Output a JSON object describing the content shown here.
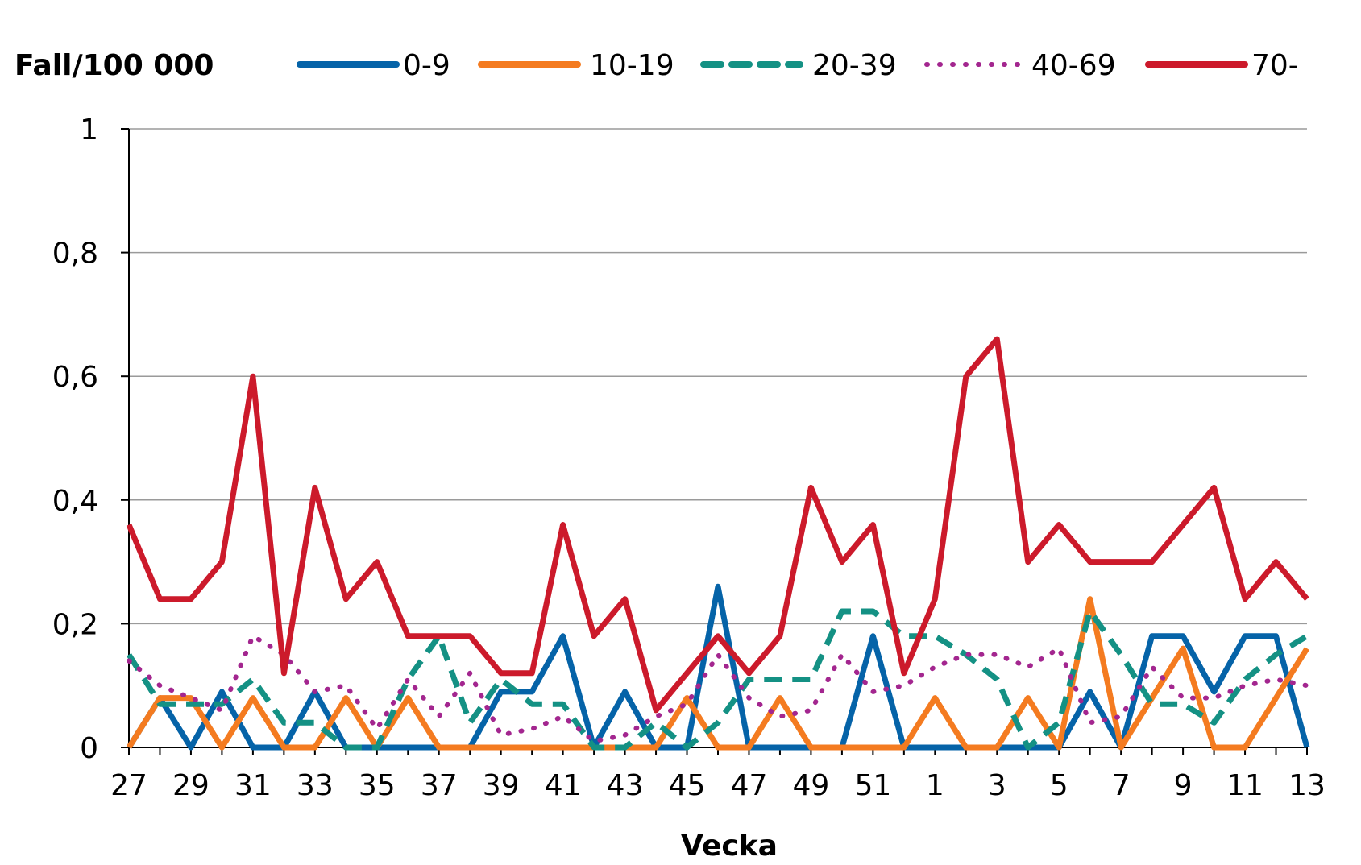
{
  "chart_data": {
    "type": "line",
    "ylabel": "Fall/100 000",
    "xlabel": "Vecka",
    "ylim": [
      0,
      1
    ],
    "yticks": [
      "0",
      "0,2",
      "0,4",
      "0,6",
      "0,8",
      "1"
    ],
    "ytick_values": [
      0,
      0.2,
      0.4,
      0.6,
      0.8,
      1
    ],
    "grid": true,
    "legend": "top",
    "x": [
      "27",
      "28",
      "29",
      "30",
      "31",
      "32",
      "33",
      "34",
      "35",
      "36",
      "37",
      "38",
      "39",
      "40",
      "41",
      "42",
      "43",
      "44",
      "45",
      "46",
      "47",
      "48",
      "49",
      "50",
      "51",
      "52",
      "1",
      "2",
      "3",
      "4",
      "5",
      "6",
      "7",
      "8",
      "9",
      "10",
      "11",
      "12",
      "13"
    ],
    "xtick_labels": [
      "27",
      "29",
      "31",
      "33",
      "35",
      "37",
      "39",
      "41",
      "43",
      "45",
      "47",
      "49",
      "51",
      "1",
      "3",
      "5",
      "7",
      "9",
      "11",
      "13"
    ],
    "series": [
      {
        "name": "0-9",
        "color": "#0563a8",
        "style": "solid",
        "values": [
          0,
          0.08,
          0,
          0.09,
          0,
          0,
          0.09,
          0,
          0,
          0,
          0,
          0,
          0.09,
          0.09,
          0.18,
          0,
          0.09,
          0,
          0,
          0.26,
          0,
          0,
          0,
          0,
          0.18,
          0,
          0,
          0,
          0,
          0,
          0,
          0.09,
          0,
          0.18,
          0.18,
          0.09,
          0.18,
          0.18,
          0
        ]
      },
      {
        "name": "10-19",
        "color": "#f47b20",
        "style": "solid",
        "values": [
          0,
          0.08,
          0.08,
          0,
          0.08,
          0,
          0,
          0.08,
          0,
          0.08,
          0,
          0,
          0,
          0,
          0,
          0,
          0,
          0,
          0.08,
          0,
          0,
          0.08,
          0,
          0,
          0,
          0,
          0.08,
          0,
          0,
          0.08,
          0,
          0.24,
          0,
          0.08,
          0.16,
          0,
          0,
          0.08,
          0.16
        ]
      },
      {
        "name": "20-39",
        "color": "#149184",
        "style": "dashed",
        "values": [
          0.15,
          0.07,
          0.07,
          0.07,
          0.11,
          0.04,
          0.04,
          0,
          0,
          0.11,
          0.18,
          0.04,
          0.11,
          0.07,
          0.07,
          0,
          0,
          0.04,
          0,
          0.04,
          0.11,
          0.11,
          0.11,
          0.22,
          0.22,
          0.18,
          0.18,
          0.15,
          0.11,
          0,
          0.04,
          0.22,
          0.15,
          0.07,
          0.07,
          0.04,
          0.11,
          0.15,
          0.18
        ]
      },
      {
        "name": "40-69",
        "color": "#a3268f",
        "style": "dotted",
        "values": [
          0.14,
          0.1,
          0.08,
          0.06,
          0.18,
          0.15,
          0.09,
          0.1,
          0.03,
          0.11,
          0.05,
          0.12,
          0.02,
          0.03,
          0.05,
          0.01,
          0.02,
          0.05,
          0.07,
          0.15,
          0.08,
          0.05,
          0.06,
          0.15,
          0.09,
          0.1,
          0.13,
          0.15,
          0.15,
          0.13,
          0.16,
          0.04,
          0.05,
          0.13,
          0.08,
          0.08,
          0.1,
          0.11,
          0.1
        ]
      },
      {
        "name": "70-",
        "color": "#cc1a2b",
        "style": "solid",
        "values": [
          0.36,
          0.24,
          0.24,
          0.3,
          0.6,
          0.12,
          0.42,
          0.24,
          0.3,
          0.18,
          0.18,
          0.18,
          0.12,
          0.12,
          0.36,
          0.18,
          0.24,
          0.06,
          0.12,
          0.18,
          0.12,
          0.18,
          0.42,
          0.3,
          0.36,
          0.12,
          0.24,
          0.6,
          0.66,
          0.3,
          0.36,
          0.3,
          0.3,
          0.3,
          0.36,
          0.42,
          0.24,
          0.3,
          0.24
        ]
      }
    ]
  }
}
